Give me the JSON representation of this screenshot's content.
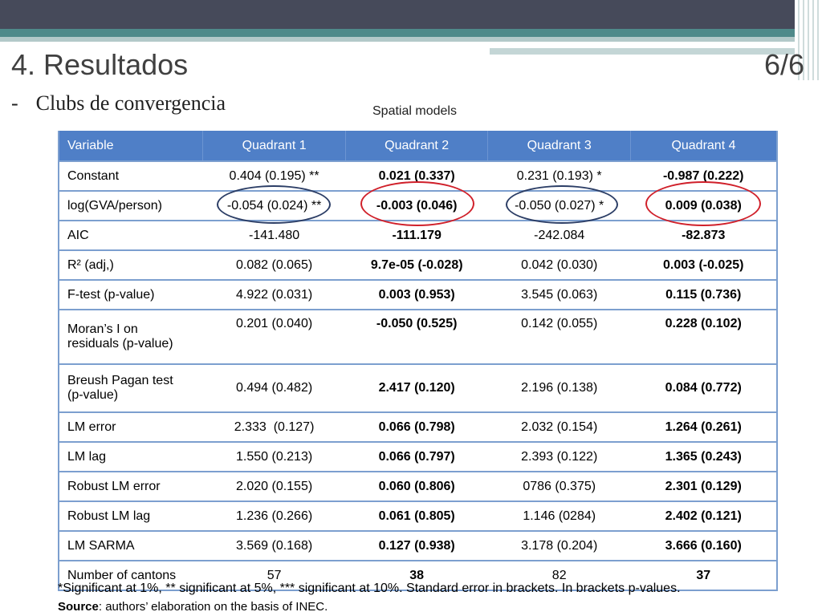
{
  "slide": {
    "title": "4. Resultados",
    "page": "6/6",
    "bullet": "-",
    "subtitle": "Clubs de convergencia",
    "caption": "Spatial models"
  },
  "table": {
    "headers": [
      "Variable",
      "Quadrant 1",
      "Quadrant 2",
      "Quadrant 3",
      "Quadrant 4"
    ],
    "rows": [
      {
        "variable": "Constant",
        "q1": "0.404 (0.195) **",
        "q2": "0.021 (0.337)",
        "q3": "0.231 (0.193) *",
        "q4": "-0.987 (0.222)"
      },
      {
        "variable": "log(GVA/person)",
        "q1": "-0.054 (0.024) **",
        "q2": "-0.003 (0.046)",
        "q3": "-0.050 (0.027) *",
        "q4": "0.009 (0.038)"
      },
      {
        "variable": "AIC",
        "q1": "-141.480",
        "q2": "-111.179",
        "q3": "-242.084",
        "q4": "-82.873"
      },
      {
        "variable": "R² (adj,)",
        "q1": "0.082 (0.065)",
        "q2": "9.7e-05 (-0.028)",
        "q3": "0.042 (0.030)",
        "q4": "0.003 (-0.025)"
      },
      {
        "variable": "F-test (p-value)",
        "q1": "4.922 (0.031)",
        "q2": "0.003 (0.953)",
        "q3": "3.545 (0.063)",
        "q4": "0.115 (0.736)"
      },
      {
        "variable_line1": "Moran’s I on",
        "variable_line2": "residuals (p-value)",
        "q1": "0.201 (0.040)",
        "q2": "-0.050 (0.525)",
        "q3": "0.142 (0.055)",
        "q4": "0.228 (0.102)"
      },
      {
        "variable_line1": "Breush Pagan test",
        "variable_line2": "(p-value)",
        "q1": "0.494 (0.482)",
        "q2": "2.417 (0.120)",
        "q3": "2.196 (0.138)",
        "q4": "0.084 (0.772)"
      },
      {
        "variable": "LM error",
        "q1": "2.333  (0.127)",
        "q2": "0.066 (0.798)",
        "q3": "2.032 (0.154)",
        "q4": "1.264 (0.261)"
      },
      {
        "variable": "LM lag",
        "q1": "1.550 (0.213)",
        "q2": "0.066 (0.797)",
        "q3": "2.393 (0.122)",
        "q4": "1.365 (0.243)"
      },
      {
        "variable": "Robust LM error",
        "q1": "2.020 (0.155)",
        "q2": "0.060 (0.806)",
        "q3": "0786 (0.375)",
        "q4": "2.301 (0.129)"
      },
      {
        "variable": "Robust LM lag",
        "q1": "1.236 (0.266)",
        "q2": "0.061 (0.805)",
        "q3": "1.146 (0284)",
        "q4": "2.402 (0.121)"
      },
      {
        "variable": "LM SARMA",
        "q1": "3.569 (0.168)",
        "q2": "0.127 (0.938)",
        "q3": "3.178 (0.204)",
        "q4": "3.666 (0.160)"
      },
      {
        "variable": "Number of cantons",
        "q1": "57",
        "q2": "38",
        "q3": "82",
        "q4": "37"
      }
    ]
  },
  "footnote": "*Significant at 1%, ** significant at 5%, *** significant at 10%. Standard error in brackets. In brackets p-values.",
  "source": {
    "label": "Source",
    "text": ": authors’ elaboration on the basis of INEC."
  },
  "colors": {
    "header_bg": "#4f7fc7",
    "row_border": "#7c9fcf",
    "circle_blue": "#2c3e66",
    "circle_red": "#d0202a"
  }
}
